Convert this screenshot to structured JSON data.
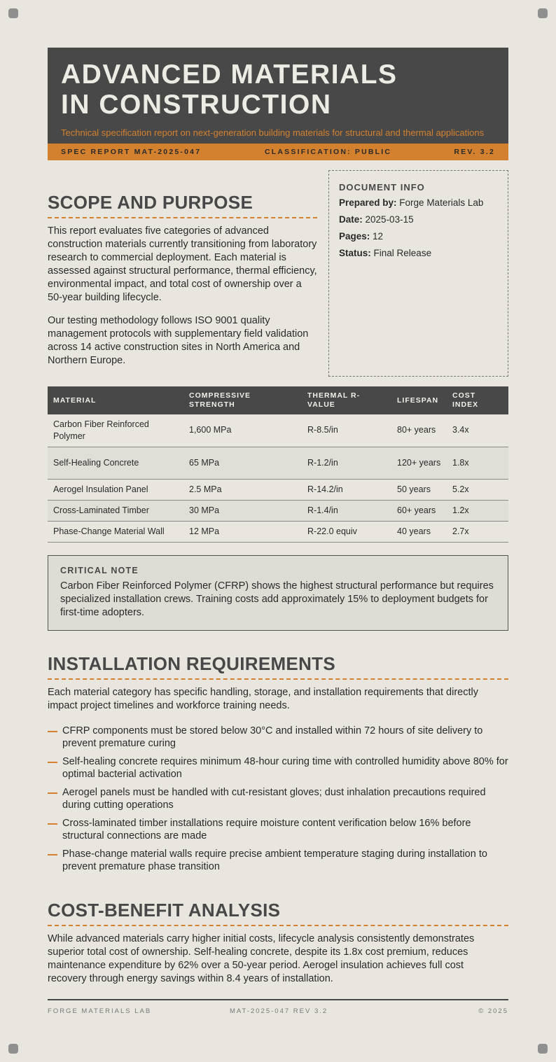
{
  "header": {
    "title_lines": [
      "ADVANCED MATERIALS",
      "IN CONSTRUCTION"
    ],
    "subtitle": "Technical specification report on next-generation building materials for structural and thermal applications",
    "bar": [
      "SPEC REPORT MAT-2025-047",
      "CLASSIFICATION: PUBLIC",
      "REV. 3.2"
    ]
  },
  "scope": {
    "heading": "SCOPE AND PURPOSE",
    "paragraphs": [
      "This report evaluates five categories of advanced construction materials currently transitioning from laboratory research to commercial deployment. Each material is assessed against structural performance, thermal efficiency, environmental impact, and total cost of ownership over a 50-year building lifecycle.",
      "Our testing methodology follows ISO 9001 quality management protocols with supplementary field validation across 14 active construction sites in North America and Northern Europe."
    ]
  },
  "document_info": {
    "heading": "DOCUMENT INFO",
    "items": [
      {
        "label": "Prepared by:",
        "value": "Forge Materials Lab"
      },
      {
        "label": "Date:",
        "value": "2025-03-15"
      },
      {
        "label": "Pages:",
        "value": "12"
      },
      {
        "label": "Status:",
        "value": "Final Release"
      }
    ]
  },
  "table": {
    "columns": [
      "MATERIAL",
      "COMPRESSIVE STRENGTH",
      "THERMAL R-VALUE",
      "LIFESPAN",
      "COST INDEX"
    ],
    "rows": [
      [
        "Carbon Fiber Reinforced Polymer",
        "1,600 MPa",
        "R-8.5/in",
        "80+ years",
        "3.4x"
      ],
      [
        "Self-Healing Concrete",
        "65 MPa",
        "R-1.2/in",
        "120+ years",
        "1.8x"
      ],
      [
        "Aerogel Insulation Panel",
        "2.5 MPa",
        "R-14.2/in",
        "50 years",
        "5.2x"
      ],
      [
        "Cross-Laminated Timber",
        "30 MPa",
        "R-1.4/in",
        "60+ years",
        "1.2x"
      ],
      [
        "Phase-Change Material Wall",
        "12 MPa",
        "R-22.0 equiv",
        "40 years",
        "2.7x"
      ]
    ]
  },
  "note": {
    "heading": "CRITICAL NOTE",
    "text": "Carbon Fiber Reinforced Polymer (CFRP) shows the highest structural performance but requires specialized installation crews. Training costs add approximately 15% to deployment budgets for first-time adopters."
  },
  "installation": {
    "heading": "INSTALLATION REQUIREMENTS",
    "intro": "Each material category has specific handling, storage, and installation requirements that directly impact project timelines and workforce training needs.",
    "items": [
      "CFRP components must be stored below 30°C and installed within 72 hours of site delivery to prevent premature curing",
      "Self-healing concrete requires minimum 48-hour curing time with controlled humidity above 80% for optimal bacterial activation",
      "Aerogel panels must be handled with cut-resistant gloves; dust inhalation precautions required during cutting operations",
      "Cross-laminated timber installations require moisture content verification below 16% before structural connections are made",
      "Phase-change material walls require precise ambient temperature staging during installation to prevent premature phase transition"
    ]
  },
  "cost_benefit": {
    "heading": "COST-BENEFIT ANALYSIS",
    "text": "While advanced materials carry higher initial costs, lifecycle analysis consistently demonstrates superior total cost of ownership. Self-healing concrete, despite its 1.8x cost premium, reduces maintenance expenditure by 62% over a 50-year period. Aerogel insulation achieves full cost recovery through energy savings within 8.4 years of installation."
  },
  "footer": [
    "FORGE MATERIALS LAB",
    "MAT-2025-047 REV 3.2",
    "© 2025"
  ]
}
